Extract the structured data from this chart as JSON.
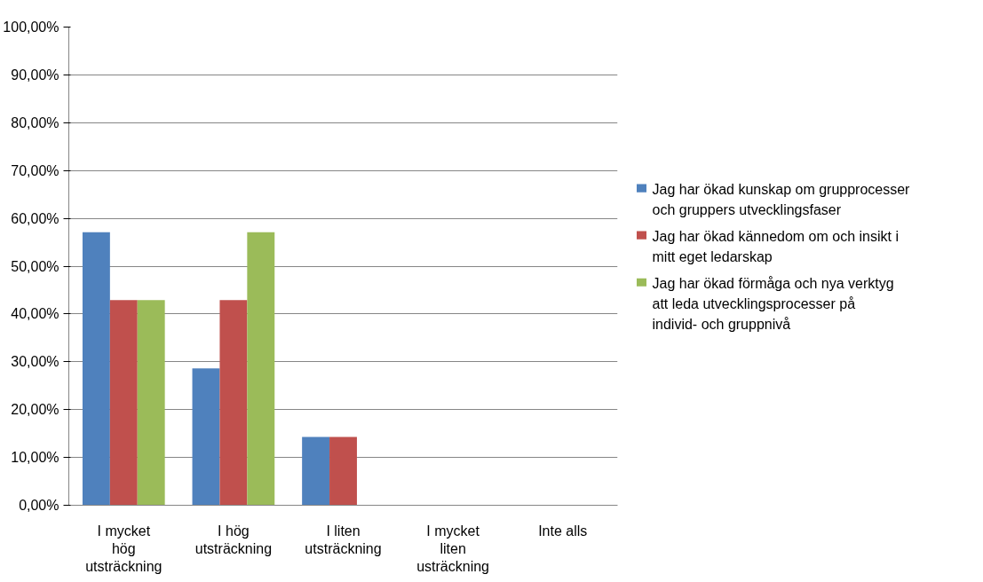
{
  "chart_data": {
    "type": "bar",
    "categories": [
      "I mycket hög utsträckning",
      "I hög utsträckning",
      "I liten utsträckning",
      "I mycket liten usträckning",
      "Inte alls"
    ],
    "series": [
      {
        "name": "Jag har ökad kunskap om grupprocesser och gruppers utvecklingsfaser",
        "color": "#4f81bd",
        "values": [
          57.1,
          28.6,
          14.3,
          0,
          0
        ]
      },
      {
        "name": "Jag har ökad kännedom om och insikt i mitt eget ledarskap",
        "color": "#c0504d",
        "values": [
          42.9,
          42.9,
          14.3,
          0,
          0
        ]
      },
      {
        "name": "Jag har ökad förmåga och nya verktyg att leda utvecklingsprocesser på individ- och gruppnivå",
        "color": "#9bbb59",
        "values": [
          42.9,
          57.1,
          0,
          0,
          0
        ]
      }
    ],
    "ylim": [
      0,
      100
    ],
    "yticks": [
      {
        "value": 0,
        "label": "0,00%"
      },
      {
        "value": 10,
        "label": "10,00%"
      },
      {
        "value": 20,
        "label": "20,00%"
      },
      {
        "value": 30,
        "label": "30,00%"
      },
      {
        "value": 40,
        "label": "40,00%"
      },
      {
        "value": 50,
        "label": "50,00%"
      },
      {
        "value": 60,
        "label": "60,00%"
      },
      {
        "value": 70,
        "label": "70,00%"
      },
      {
        "value": 80,
        "label": "80,00%"
      },
      {
        "value": 90,
        "label": "90,00%"
      },
      {
        "value": 100,
        "label": "100,00%"
      }
    ],
    "grid": "y",
    "legend": "right"
  }
}
